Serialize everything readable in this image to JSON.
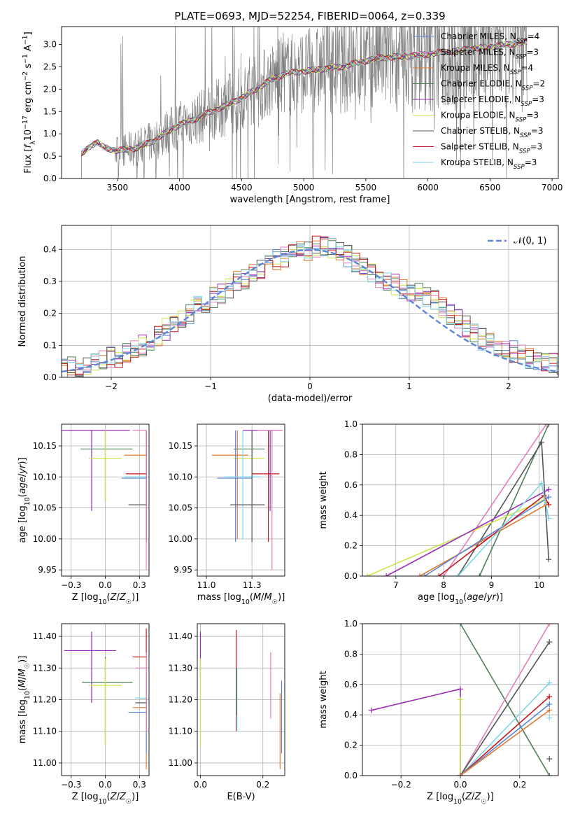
{
  "figure": {
    "title": "PLATE=0693, MJD=52254, FIBERID=0064, z=0.339"
  },
  "models": [
    {
      "name": "Chabrier MILES",
      "nssp": 4,
      "color": "#5b86d8"
    },
    {
      "name": "Salpeter MILES",
      "nssp": 3,
      "color": "#e57fb9"
    },
    {
      "name": "Kroupa MILES",
      "nssp": 4,
      "color": "#e07b32"
    },
    {
      "name": "Chabrier ELODIE",
      "nssp": 2,
      "color": "#4f7f5a"
    },
    {
      "name": "Salpeter ELODIE",
      "nssp": 3,
      "color": "#9b2fb7"
    },
    {
      "name": "Kroupa ELODIE",
      "nssp": 3,
      "color": "#cfe34a"
    },
    {
      "name": "Chabrier STELIB",
      "nssp": 3,
      "color": "#555555"
    },
    {
      "name": "Salpeter STELIB",
      "nssp": 3,
      "color": "#c4161c"
    },
    {
      "name": "Kroupa STELIB",
      "nssp": 3,
      "color": "#7fd6e6"
    }
  ],
  "chart_data": [
    {
      "id": "spectrum",
      "type": "line",
      "xlabel": "wavelength [Angstrom, rest frame]",
      "ylabel": "Flux [f_λ 10^-17 erg cm^-2 s^-1 A^-1]",
      "xlim": [
        3050,
        7050
      ],
      "ylim": [
        0,
        3.4
      ],
      "xticks": [
        3500,
        4000,
        4500,
        5000,
        5500,
        6000,
        6500,
        7000
      ],
      "yticks": [
        0.0,
        0.5,
        1.0,
        1.5,
        2.0,
        2.5,
        3.0
      ],
      "data_color": "#808080",
      "data_range": [
        3210,
        6800
      ],
      "continuum": [
        [
          3210,
          0.55
        ],
        [
          3290,
          0.75
        ],
        [
          3340,
          0.8
        ],
        [
          3390,
          0.7
        ],
        [
          3500,
          0.62
        ],
        [
          3650,
          0.68
        ],
        [
          3800,
          0.85
        ],
        [
          3900,
          1.05
        ],
        [
          4000,
          1.2
        ],
        [
          4100,
          1.3
        ],
        [
          4300,
          1.55
        ],
        [
          4500,
          1.8
        ],
        [
          4700,
          2.15
        ],
        [
          4850,
          2.35
        ],
        [
          5000,
          2.4
        ],
        [
          5300,
          2.5
        ],
        [
          5600,
          2.7
        ],
        [
          5900,
          2.75
        ],
        [
          6200,
          2.85
        ],
        [
          6500,
          2.95
        ],
        [
          6800,
          3.05
        ]
      ],
      "grid": false,
      "legend": "top-right"
    },
    {
      "id": "residuals",
      "type": "histogram",
      "xlabel": "(data-model)/error",
      "ylabel": "Normed distribution",
      "xlim": [
        -2.5,
        2.5
      ],
      "ylim": [
        0,
        0.475
      ],
      "xticks": [
        -2,
        -1,
        0,
        1,
        2
      ],
      "yticks": [
        0.0,
        0.1,
        0.2,
        0.3,
        0.4
      ],
      "bin_width": 0.1,
      "base_values": [
        0.02,
        0.025,
        0.03,
        0.035,
        0.04,
        0.05,
        0.055,
        0.06,
        0.065,
        0.075,
        0.09,
        0.1,
        0.115,
        0.13,
        0.15,
        0.17,
        0.19,
        0.2,
        0.22,
        0.235,
        0.25,
        0.26,
        0.28,
        0.3,
        0.31,
        0.33,
        0.34,
        0.36,
        0.37,
        0.38,
        0.39,
        0.395,
        0.4,
        0.41,
        0.41,
        0.4,
        0.39,
        0.38,
        0.36,
        0.34,
        0.32,
        0.31,
        0.3,
        0.29,
        0.28,
        0.27,
        0.26,
        0.25,
        0.24,
        0.22,
        0.2,
        0.18,
        0.16,
        0.14,
        0.12,
        0.11,
        0.1,
        0.09,
        0.08,
        0.07,
        0.06,
        0.055,
        0.05,
        0.045,
        0.04,
        0.035,
        0.03,
        0.03,
        0.025,
        0.02
      ],
      "reference_label": "𝒩(0, 1)",
      "reference_color": "#5b86d8",
      "grid": true,
      "legend": "top-right"
    },
    {
      "id": "age-vs-Z",
      "type": "errorbar",
      "xlabel": "Z [log10(Z/Z☉)]",
      "ylabel": "age  [log10(age/yr)]",
      "xlim": [
        -0.32,
        0.32
      ],
      "ylim": [
        9.94,
        10.185
      ],
      "xticks": [
        -0.25,
        0.0,
        0.25
      ],
      "yticks": [
        9.95,
        10.0,
        10.05,
        10.1,
        10.15
      ],
      "points": [
        {
          "model": "Salpeter ELODIE",
          "x": -0.1,
          "y": 10.175,
          "xlo": -0.32,
          "xhi": 0.18,
          "ylo": 10.045,
          "yhi": 10.175
        },
        {
          "model": "Chabrier ELODIE",
          "x": 0.0,
          "y": 10.145,
          "xlo": -0.18,
          "xhi": 0.2,
          "ylo": 10.06,
          "yhi": 10.175
        },
        {
          "model": "Kroupa ELODIE",
          "x": 0.0,
          "y": 10.13,
          "xlo": -0.12,
          "xhi": 0.12,
          "ylo": 10.06,
          "yhi": 10.175
        },
        {
          "model": "Kroupa MILES",
          "x": 0.3,
          "y": 10.135,
          "xlo": 0.14,
          "xhi": 0.3,
          "ylo": 10.0,
          "yhi": 10.175
        },
        {
          "model": "Salpeter STELIB",
          "x": 0.3,
          "y": 10.105,
          "xlo": 0.15,
          "xhi": 0.3,
          "ylo": 9.995,
          "yhi": 10.175
        },
        {
          "model": "Chabrier MILES",
          "x": 0.3,
          "y": 10.098,
          "xlo": 0.12,
          "xhi": 0.3,
          "ylo": 9.995,
          "yhi": 10.175
        },
        {
          "model": "Kroupa STELIB",
          "x": 0.3,
          "y": 10.1,
          "xlo": 0.14,
          "xhi": 0.3,
          "ylo": 9.995,
          "yhi": 10.175
        },
        {
          "model": "Chabrier STELIB",
          "x": 0.3,
          "y": 10.055,
          "xlo": 0.17,
          "xhi": 0.3,
          "ylo": 9.995,
          "yhi": 10.175
        },
        {
          "model": "Salpeter MILES",
          "x": 0.3,
          "y": 10.175,
          "xlo": 0.2,
          "xhi": 0.3,
          "ylo": 9.95,
          "yhi": 10.175
        }
      ],
      "grid": true
    },
    {
      "id": "age-vs-mass",
      "type": "errorbar",
      "xlabel": "mass [log10(M/M☉)]",
      "ylabel": "",
      "xlim": [
        10.95,
        11.43
      ],
      "ylim": [
        9.94,
        10.185
      ],
      "xticks": [
        11.0,
        11.25
      ],
      "yticks": [
        9.95,
        10.0,
        10.05,
        10.1,
        10.15
      ],
      "points": [
        {
          "model": "Salpeter ELODIE",
          "x": 11.35,
          "y": 10.175,
          "xlo": 11.2,
          "xhi": 11.41,
          "ylo": 10.045,
          "yhi": 10.175
        },
        {
          "model": "Chabrier ELODIE",
          "x": 11.25,
          "y": 10.145,
          "xlo": 11.15,
          "xhi": 11.32,
          "ylo": 10.06,
          "yhi": 10.175
        },
        {
          "model": "Kroupa ELODIE",
          "x": 11.25,
          "y": 10.13,
          "xlo": 11.15,
          "xhi": 11.32,
          "ylo": 10.06,
          "yhi": 10.175
        },
        {
          "model": "Kroupa MILES",
          "x": 11.17,
          "y": 10.135,
          "xlo": 11.03,
          "xhi": 11.23,
          "ylo": 10.0,
          "yhi": 10.175
        },
        {
          "model": "Salpeter STELIB",
          "x": 11.34,
          "y": 10.105,
          "xlo": 11.25,
          "xhi": 11.4,
          "ylo": 9.995,
          "yhi": 10.175
        },
        {
          "model": "Chabrier MILES",
          "x": 11.16,
          "y": 10.098,
          "xlo": 11.06,
          "xhi": 11.25,
          "ylo": 9.995,
          "yhi": 10.175
        },
        {
          "model": "Kroupa STELIB",
          "x": 11.2,
          "y": 10.1,
          "xlo": 11.1,
          "xhi": 11.3,
          "ylo": 10.0,
          "yhi": 10.175
        },
        {
          "model": "Chabrier STELIB",
          "x": 11.25,
          "y": 10.055,
          "xlo": 11.13,
          "xhi": 11.32,
          "ylo": 9.995,
          "yhi": 10.175
        },
        {
          "model": "Salpeter MILES",
          "x": 11.36,
          "y": 10.175,
          "xlo": 11.28,
          "xhi": 11.42,
          "ylo": 9.95,
          "yhi": 10.175
        }
      ],
      "grid": true
    },
    {
      "id": "mass-vs-Z",
      "type": "errorbar",
      "xlabel": "Z [log10(Z/Z☉)]",
      "ylabel": "mass [log10(M/M☉)]",
      "xlim": [
        -0.32,
        0.32
      ],
      "ylim": [
        10.96,
        11.44
      ],
      "xticks": [
        -0.25,
        0.0,
        0.25
      ],
      "yticks": [
        11.0,
        11.1,
        11.2,
        11.3,
        11.4
      ],
      "points": [
        {
          "model": "Salpeter ELODIE",
          "x": -0.1,
          "y": 11.355,
          "xlo": -0.3,
          "xhi": 0.08,
          "ylo": 11.19,
          "yhi": 11.415
        },
        {
          "model": "Chabrier ELODIE",
          "x": 0.0,
          "y": 11.255,
          "xlo": -0.17,
          "xhi": 0.2,
          "ylo": 11.06,
          "yhi": 11.335
        },
        {
          "model": "Kroupa ELODIE",
          "x": 0.0,
          "y": 11.245,
          "xlo": -0.12,
          "xhi": 0.12,
          "ylo": 11.06,
          "yhi": 11.33
        },
        {
          "model": "Salpeter STELIB",
          "x": 0.3,
          "y": 11.335,
          "xlo": 0.2,
          "xhi": 0.3,
          "ylo": 11.2,
          "yhi": 11.425
        },
        {
          "model": "Chabrier STELIB",
          "x": 0.3,
          "y": 11.19,
          "xlo": 0.22,
          "xhi": 0.3,
          "ylo": 11.1,
          "yhi": 11.3
        },
        {
          "model": "Kroupa STELIB",
          "x": 0.3,
          "y": 11.205,
          "xlo": 0.22,
          "xhi": 0.3,
          "ylo": 11.1,
          "yhi": 11.3
        },
        {
          "model": "Kroupa MILES",
          "x": 0.3,
          "y": 11.175,
          "xlo": 0.2,
          "xhi": 0.3,
          "ylo": 10.98,
          "yhi": 11.23
        },
        {
          "model": "Chabrier MILES",
          "x": 0.3,
          "y": 11.16,
          "xlo": 0.17,
          "xhi": 0.3,
          "ylo": 11.03,
          "yhi": 11.26
        },
        {
          "model": "Salpeter MILES",
          "x": 0.3,
          "y": 11.3,
          "xlo": 0.22,
          "xhi": 0.3,
          "ylo": 11.1,
          "yhi": 11.35
        }
      ],
      "grid": true
    },
    {
      "id": "mass-vs-EBV",
      "type": "errorbar",
      "xlabel": "E(B-V)",
      "ylabel": "",
      "xlim": [
        -0.01,
        0.27
      ],
      "ylim": [
        10.96,
        11.44
      ],
      "xticks": [
        0.0,
        0.2
      ],
      "yticks": [
        11.0,
        11.1,
        11.2,
        11.3,
        11.4
      ],
      "points": [
        {
          "model": "Salpeter ELODIE",
          "x": 0.0,
          "y": 11.35,
          "ylo": 11.27,
          "yhi": 11.415
        },
        {
          "model": "Kroupa ELODIE",
          "x": 0.0,
          "y": 11.24,
          "ylo": 11.05,
          "yhi": 11.33
        },
        {
          "model": "Salpeter STELIB",
          "x": 0.115,
          "y": 11.33,
          "ylo": 11.1,
          "yhi": 11.42
        },
        {
          "model": "Kroupa STELIB",
          "x": 0.117,
          "y": 11.2,
          "ylo": 11.1,
          "yhi": 11.3
        },
        {
          "model": "Chabrier STELIB",
          "x": 0.115,
          "y": 11.22,
          "ylo": 11.15,
          "yhi": 11.3
        },
        {
          "model": "Salpeter MILES",
          "x": 0.225,
          "y": 11.27,
          "ylo": 11.14,
          "yhi": 11.35
        },
        {
          "model": "Kroupa MILES",
          "x": 0.255,
          "y": 11.12,
          "ylo": 10.98,
          "yhi": 11.22
        },
        {
          "model": "Chabrier MILES",
          "x": 0.26,
          "y": 11.15,
          "ylo": 11.03,
          "yhi": 11.26
        }
      ],
      "grid": true
    },
    {
      "id": "weight-vs-age",
      "type": "line",
      "xlabel": "age  [log10(age/yr)]",
      "ylabel": "mass weight",
      "xlim": [
        6.3,
        10.4
      ],
      "ylim": [
        0,
        1.0
      ],
      "xticks": [
        7,
        8,
        9,
        10
      ],
      "yticks": [
        0.0,
        0.2,
        0.4,
        0.6,
        0.8,
        1.0
      ],
      "series": [
        {
          "model": "Salpeter MILES",
          "points": [
            [
              8.0,
              0.0
            ],
            [
              10.15,
              1.0
            ]
          ]
        },
        {
          "model": "Chabrier ELODIE",
          "points": [
            [
              8.75,
              0.0
            ],
            [
              10.2,
              1.0
            ]
          ]
        },
        {
          "model": "Chabrier STELIB",
          "points": [
            [
              8.3,
              0.0
            ],
            [
              10.05,
              0.88
            ],
            [
              10.2,
              0.11
            ]
          ]
        },
        {
          "model": "Kroupa ELODIE",
          "points": [
            [
              6.4,
              0.0
            ],
            [
              10.1,
              0.5
            ]
          ]
        },
        {
          "model": "Kroupa MILES",
          "points": [
            [
              7.5,
              0.0
            ],
            [
              10.15,
              0.47
            ]
          ]
        },
        {
          "model": "Chabrier MILES",
          "points": [
            [
              7.6,
              0.0
            ],
            [
              10.2,
              0.52
            ]
          ]
        },
        {
          "model": "Salpeter ELODIE",
          "points": [
            [
              6.8,
              0.0
            ],
            [
              10.2,
              0.57
            ]
          ]
        },
        {
          "model": "Salpeter STELIB",
          "points": [
            [
              7.9,
              0.0
            ],
            [
              10.1,
              0.53
            ],
            [
              10.2,
              0.47
            ]
          ]
        },
        {
          "model": "Kroupa STELIB",
          "points": [
            [
              8.3,
              0.0
            ],
            [
              10.05,
              0.61
            ],
            [
              10.2,
              0.38
            ]
          ]
        }
      ],
      "grid": true
    },
    {
      "id": "weight-vs-Z",
      "type": "line",
      "xlabel": "Z [log10(Z/Z☉)]",
      "ylabel": "mass weight",
      "xlim": [
        -0.33,
        0.33
      ],
      "ylim": [
        0,
        1.0
      ],
      "xticks": [
        -0.2,
        0.0,
        0.2
      ],
      "yticks": [
        0.0,
        0.2,
        0.4,
        0.6,
        0.8,
        1.0
      ],
      "series": [
        {
          "model": "Salpeter ELODIE",
          "points": [
            [
              -0.3,
              0.43
            ],
            [
              0.0,
              0.57
            ],
            [
              0.0,
              0.0
            ]
          ]
        },
        {
          "model": "Kroupa ELODIE",
          "points": [
            [
              0.0,
              0.5
            ],
            [
              0.0,
              0.0
            ]
          ]
        },
        {
          "model": "Chabrier ELODIE",
          "points": [
            [
              0.0,
              1.0
            ],
            [
              0.3,
              0.0
            ]
          ]
        },
        {
          "model": "Salpeter MILES",
          "points": [
            [
              0.0,
              0.0
            ],
            [
              0.3,
              1.0
            ]
          ]
        },
        {
          "model": "Chabrier STELIB",
          "points": [
            [
              0.0,
              0.0
            ],
            [
              0.3,
              0.88
            ]
          ]
        },
        {
          "model": "Kroupa STELIB",
          "points": [
            [
              0.0,
              0.0
            ],
            [
              0.3,
              0.61
            ]
          ]
        },
        {
          "model": "Salpeter STELIB",
          "points": [
            [
              0.0,
              0.0
            ],
            [
              0.3,
              0.52
            ]
          ]
        },
        {
          "model": "Chabrier MILES",
          "points": [
            [
              0.0,
              0.0
            ],
            [
              0.3,
              0.47
            ]
          ]
        },
        {
          "model": "Kroupa MILES",
          "points": [
            [
              0.0,
              0.0
            ],
            [
              0.3,
              0.43
            ]
          ]
        }
      ],
      "markers_extra": [
        {
          "model": "Chabrier STELIB",
          "x": 0.3,
          "y": 0.11
        },
        {
          "model": "Kroupa STELIB",
          "x": 0.3,
          "y": 0.38
        }
      ],
      "grid": true
    }
  ]
}
